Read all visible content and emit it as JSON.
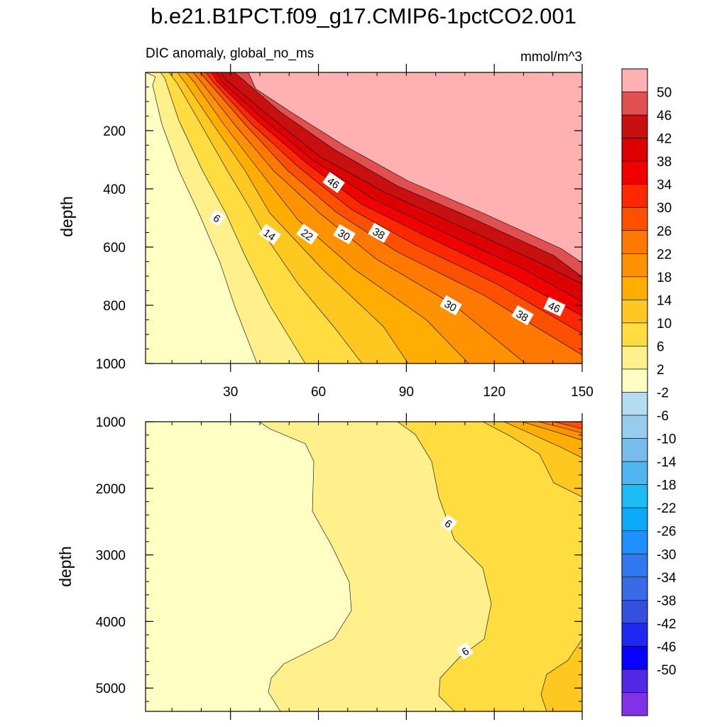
{
  "chart_data": {
    "type": "contour",
    "title": "b.e21.B1PCT.f09_g17.CMIP6-1pctCO2.001",
    "left_string": "DIC anomaly, global_no_ms",
    "right_string": "mmol/m^3",
    "x_ticks": [
      "30",
      "60",
      "90",
      "120",
      "150"
    ],
    "x_range": [
      1,
      150
    ],
    "panels": [
      {
        "name": "upper",
        "ylabel": "depth",
        "y_range": [
          0,
          1000
        ],
        "y_ticks": [
          "200",
          "400",
          "600",
          "800",
          "1000"
        ],
        "contour_labels": [
          "46",
          "6",
          "14",
          "22",
          "30",
          "38",
          "30",
          "38",
          "46"
        ]
      },
      {
        "name": "lower",
        "ylabel": "depth",
        "y_range": [
          1000,
          5350
        ],
        "y_ticks": [
          "1000",
          "2000",
          "3000",
          "4000",
          "5000"
        ],
        "contour_labels": [
          "6",
          "6"
        ]
      }
    ],
    "colorbar": {
      "labels": [
        "50",
        "46",
        "42",
        "38",
        "34",
        "30",
        "26",
        "22",
        "18",
        "14",
        "10",
        "6",
        "2",
        "-2",
        "-6",
        "-10",
        "-14",
        "-18",
        "-22",
        "-26",
        "-30",
        "-34",
        "-38",
        "-42",
        "-46",
        "-50"
      ],
      "colors": [
        "#FFB0B0",
        "#E05050",
        "#C81010",
        "#DC0000",
        "#F00000",
        "#FF2800",
        "#FF5000",
        "#FF7800",
        "#FF9200",
        "#FFAE00",
        "#FFC820",
        "#FFDC40",
        "#FFF08C",
        "#FFFFC4",
        "#B4DCF0",
        "#96CCEC",
        "#78BCEA",
        "#50B4F0",
        "#1EBCF4",
        "#0AAAF8",
        "#1E90FF",
        "#3278F0",
        "#3A6AE6",
        "#3250DC",
        "#1E28F0",
        "#0A00FF",
        "#5028E6",
        "#8232E6"
      ]
    }
  }
}
